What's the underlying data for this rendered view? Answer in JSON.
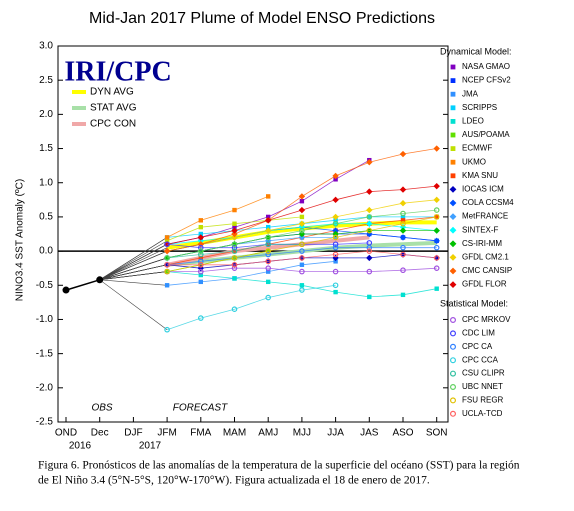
{
  "chart_data": {
    "type": "line",
    "title": "Mid-Jan 2017 Plume of Model ENSO Predictions",
    "logo": "IRI/CPC",
    "y_label": "NINO3.4 SST Anomaly (ºC)",
    "phase_labels": [
      "OBS",
      "FORECAST"
    ],
    "year_labels": [
      "2016",
      "2017"
    ],
    "legend_groups": [
      "Dynamical Model:",
      "Statistical Model:"
    ],
    "caption": [
      "Figura 6. Pronósticos de las anomalías de la temperatura de la superficie del océano (SST) para la región",
      "de El Niño 3.4 (5°N-5°S, 120°W-170°W). Figura actualizada el 18 de enero de 2017."
    ],
    "categories": [
      "OND",
      "Dec",
      "DJF",
      "JFM",
      "FMA",
      "MAM",
      "AMJ",
      "MJJ",
      "JJA",
      "JAS",
      "ASO",
      "SON"
    ],
    "ylim": [
      -2.5,
      3
    ],
    "yticks": [
      {
        "value": -2.5,
        "label": "-2.5"
      },
      {
        "value": -2,
        "label": "-2.0"
      },
      -1.5,
      {
        "value": -1,
        "label": "-1.0"
      },
      -0.5,
      {
        "value": 0,
        "label": "0.0"
      },
      0.5,
      {
        "value": 1,
        "label": "1.0"
      },
      1.5,
      {
        "value": 2,
        "label": "2.0"
      },
      2.5,
      {
        "value": 3,
        "label": "3.0"
      }
    ],
    "observed": {
      "color": "#000000",
      "values": [
        -0.57,
        -0.42,
        null,
        null,
        null,
        null,
        null,
        null,
        null,
        null,
        null,
        null
      ]
    },
    "averages": [
      {
        "name": "DYN AVG",
        "color": "#ffff00",
        "values": [
          null,
          null,
          null,
          0.05,
          0.12,
          0.2,
          0.28,
          0.33,
          0.37,
          0.4,
          0.42,
          0.42
        ]
      },
      {
        "name": "STAT AVG",
        "color": "#a8e0a8",
        "values": [
          null,
          null,
          null,
          -0.2,
          -0.15,
          -0.1,
          -0.05,
          0.0,
          0.05,
          0.08,
          0.1,
          0.12
        ]
      },
      {
        "name": "CPC CON",
        "color": "#f0a8a8",
        "values": [
          null,
          null,
          null,
          -0.2,
          -0.1,
          0.0,
          0.05,
          0.1,
          0.15,
          0.2,
          null,
          null
        ]
      }
    ],
    "series": [
      {
        "name": "NASA GMAO",
        "group": 0,
        "shape": "square",
        "color": "#8000c0",
        "values": [
          null,
          null,
          null,
          0.1,
          0.2,
          0.35,
          0.5,
          0.73,
          1.05,
          1.33,
          null,
          null
        ]
      },
      {
        "name": "NCEP CFSv2",
        "group": 0,
        "shape": "square",
        "color": "#0030ff",
        "values": [
          null,
          null,
          null,
          -0.1,
          0.0,
          0.1,
          0.2,
          0.25,
          0.25,
          0.25,
          0.2,
          0.15
        ]
      },
      {
        "name": "JMA",
        "group": 0,
        "shape": "square",
        "color": "#3090ff",
        "values": [
          null,
          null,
          null,
          -0.5,
          -0.45,
          -0.4,
          -0.3,
          -0.2,
          -0.15,
          null,
          null,
          null
        ]
      },
      {
        "name": "SCRIPPS",
        "group": 0,
        "shape": "square",
        "color": "#00d0ff",
        "values": [
          null,
          null,
          null,
          0.2,
          0.25,
          0.3,
          0.35,
          0.4,
          0.45,
          0.5,
          0.5,
          0.5
        ]
      },
      {
        "name": "LDEO",
        "group": 0,
        "shape": "square",
        "color": "#00e0d0",
        "values": [
          null,
          null,
          null,
          -0.3,
          -0.35,
          -0.4,
          -0.45,
          -0.5,
          -0.6,
          -0.67,
          -0.64,
          -0.55
        ]
      },
      {
        "name": "AUS/POAMA",
        "group": 0,
        "shape": "square",
        "color": "#60e000",
        "values": [
          null,
          null,
          null,
          -0.3,
          -0.2,
          -0.1,
          0.0,
          null,
          null,
          null,
          null,
          null
        ]
      },
      {
        "name": "ECMWF",
        "group": 0,
        "shape": "square",
        "color": "#c0e000",
        "values": [
          null,
          null,
          null,
          0.15,
          0.35,
          0.4,
          0.45,
          0.5,
          null,
          null,
          null,
          null
        ]
      },
      {
        "name": "UKMO",
        "group": 0,
        "shape": "square",
        "color": "#ff8000",
        "values": [
          null,
          null,
          null,
          0.2,
          0.45,
          0.6,
          0.8,
          null,
          null,
          null,
          null,
          null
        ]
      },
      {
        "name": "KMA SNU",
        "group": 0,
        "shape": "square",
        "color": "#ff4000",
        "values": [
          null,
          null,
          null,
          -0.2,
          -0.1,
          0.0,
          0.1,
          0.2,
          0.3,
          0.4,
          0.45,
          0.5
        ]
      },
      {
        "name": "IOCAS ICM",
        "group": 0,
        "shape": "diamond",
        "color": "#0000c0",
        "values": [
          null,
          null,
          null,
          -0.2,
          -0.25,
          -0.2,
          -0.15,
          -0.1,
          -0.1,
          -0.1,
          -0.05,
          -0.1
        ]
      },
      {
        "name": "COLA CCSM4",
        "group": 0,
        "shape": "diamond",
        "color": "#0050ff",
        "values": [
          null,
          null,
          null,
          0.0,
          0.1,
          0.2,
          0.3,
          0.35,
          0.3,
          0.25,
          0.2,
          0.15
        ]
      },
      {
        "name": "MetFRANCE",
        "group": 0,
        "shape": "diamond",
        "color": "#40a0ff",
        "values": [
          null,
          null,
          null,
          -0.1,
          0.0,
          0.1,
          0.15,
          0.2,
          0.2,
          null,
          null,
          null
        ]
      },
      {
        "name": "SINTEX-F",
        "group": 0,
        "shape": "diamond",
        "color": "#00ffff",
        "values": [
          null,
          null,
          null,
          0.1,
          0.15,
          0.2,
          0.3,
          0.35,
          0.4,
          0.4,
          0.35,
          0.3
        ]
      },
      {
        "name": "CS-IRI-MM",
        "group": 0,
        "shape": "diamond",
        "color": "#00c000",
        "values": [
          null,
          null,
          null,
          -0.1,
          0.0,
          0.1,
          0.2,
          0.25,
          0.25,
          0.3,
          0.3,
          0.3
        ]
      },
      {
        "name": "GFDL CM2.1",
        "group": 0,
        "shape": "diamond",
        "color": "#f0d000",
        "values": [
          null,
          null,
          null,
          0.0,
          0.1,
          0.2,
          0.3,
          0.4,
          0.5,
          0.6,
          0.7,
          0.75
        ]
      },
      {
        "name": "CMC CANSIP",
        "group": 0,
        "shape": "diamond",
        "color": "#ff6000",
        "values": [
          null,
          null,
          null,
          0.0,
          0.1,
          0.25,
          0.45,
          0.8,
          1.1,
          1.3,
          1.42,
          1.5
        ]
      },
      {
        "name": "GFDL FLOR",
        "group": 0,
        "shape": "diamond",
        "color": "#e00000",
        "values": [
          null,
          null,
          null,
          0.1,
          0.2,
          0.3,
          0.45,
          0.6,
          0.75,
          0.87,
          0.9,
          0.95
        ]
      },
      {
        "name": "CPC MRKOV",
        "group": 1,
        "shape": "circle",
        "color": "#a050e0",
        "values": [
          null,
          null,
          null,
          -0.3,
          -0.3,
          -0.25,
          -0.25,
          -0.3,
          -0.3,
          -0.3,
          -0.28,
          -0.25
        ]
      },
      {
        "name": "CDC LIM",
        "group": 1,
        "shape": "circle",
        "color": "#4040ff",
        "values": [
          null,
          null,
          null,
          0.1,
          0.05,
          0.05,
          0.1,
          0.1,
          0.1,
          0.12,
          null,
          null
        ]
      },
      {
        "name": "CPC CA",
        "group": 1,
        "shape": "circle",
        "color": "#3080ff",
        "values": [
          null,
          null,
          null,
          -0.2,
          -0.15,
          -0.1,
          -0.05,
          0.0,
          0.05,
          0.05,
          0.05,
          0.05
        ]
      },
      {
        "name": "CPC CCA",
        "group": 1,
        "shape": "circle",
        "color": "#30d0e0",
        "values": [
          null,
          null,
          null,
          -1.15,
          -0.98,
          -0.85,
          -0.68,
          -0.57,
          -0.5,
          null,
          null,
          null
        ]
      },
      {
        "name": "CSU CLIPR",
        "group": 1,
        "shape": "circle",
        "color": "#30c0a0",
        "values": [
          null,
          null,
          null,
          -0.1,
          -0.05,
          0.0,
          0.1,
          0.1,
          null,
          null,
          null,
          null
        ]
      },
      {
        "name": "UBC NNET",
        "group": 1,
        "shape": "circle",
        "color": "#60d060",
        "values": [
          null,
          null,
          null,
          -0.1,
          0.0,
          0.1,
          0.2,
          0.3,
          0.4,
          0.5,
          0.55,
          0.6
        ]
      },
      {
        "name": "FSU REGR",
        "group": 1,
        "shape": "circle",
        "color": "#e0c000",
        "values": [
          null,
          null,
          null,
          -0.3,
          -0.2,
          -0.1,
          0.0,
          0.1,
          0.2,
          0.3,
          0.4,
          0.5
        ]
      },
      {
        "name": "UCLA-TCD",
        "group": 1,
        "shape": "circle",
        "color": "#ff6060",
        "values": [
          null,
          null,
          null,
          -0.2,
          -0.2,
          -0.2,
          -0.15,
          -0.1,
          -0.05,
          0.0,
          -0.05,
          -0.1
        ]
      }
    ]
  }
}
